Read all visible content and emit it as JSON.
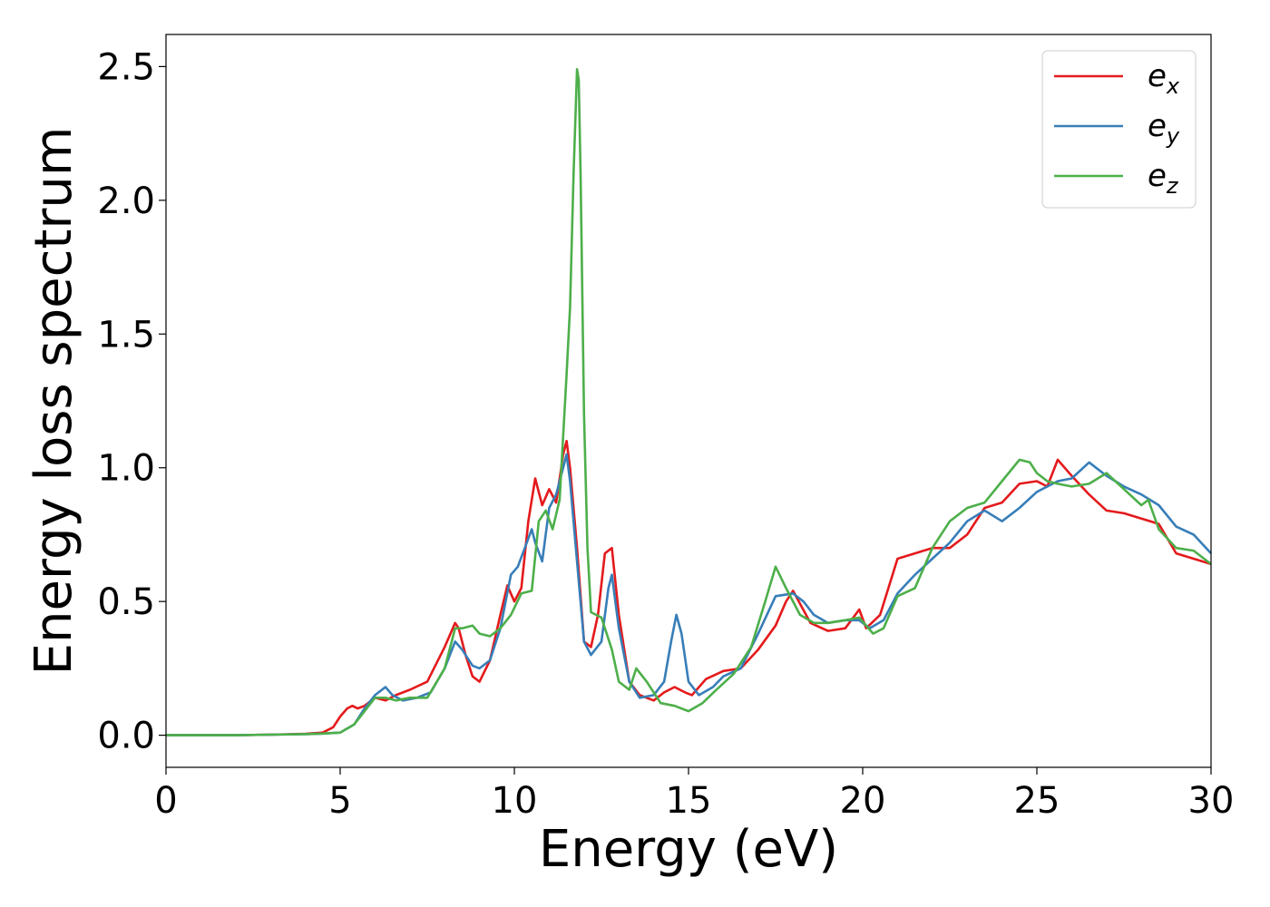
{
  "chart_data": {
    "type": "line",
    "title": "",
    "xlabel": "Energy (eV)",
    "ylabel": "Energy loss spectrum",
    "xlim": [
      0,
      30
    ],
    "ylim": [
      -0.12,
      2.62
    ],
    "xticks": [
      "0",
      "5",
      "10",
      "15",
      "20",
      "25",
      "30"
    ],
    "yticks": [
      "0.0",
      "0.5",
      "1.0",
      "1.5",
      "2.0",
      "2.5"
    ],
    "grid": false,
    "legend_position": "top-right",
    "series": [
      {
        "name": "e_x",
        "label_base": "e",
        "label_sub": "x",
        "color": "#e41a1c",
        "x": [
          0,
          1,
          2,
          3,
          4,
          4.5,
          4.8,
          5.0,
          5.2,
          5.35,
          5.5,
          5.7,
          6.0,
          6.3,
          6.6,
          7.0,
          7.5,
          8.0,
          8.3,
          8.4,
          8.6,
          8.8,
          9.0,
          9.3,
          9.6,
          9.8,
          10.0,
          10.2,
          10.4,
          10.6,
          10.8,
          11.0,
          11.2,
          11.4,
          11.5,
          11.6,
          11.8,
          12.0,
          12.2,
          12.4,
          12.6,
          12.8,
          13.0,
          13.3,
          13.6,
          14.0,
          14.3,
          14.6,
          14.9,
          15.1,
          15.5,
          16.0,
          16.5,
          17.0,
          17.5,
          17.8,
          18.0,
          18.5,
          19.0,
          19.5,
          19.9,
          20.1,
          20.5,
          21.0,
          21.5,
          22.0,
          22.5,
          23.0,
          23.5,
          24.0,
          24.5,
          25.0,
          25.3,
          25.6,
          26.0,
          26.5,
          27.0,
          27.5,
          28.0,
          28.5,
          29.0,
          29.5,
          30.0
        ],
        "y": [
          0,
          0,
          0,
          0.002,
          0.005,
          0.01,
          0.03,
          0.07,
          0.1,
          0.11,
          0.1,
          0.11,
          0.14,
          0.13,
          0.15,
          0.17,
          0.2,
          0.33,
          0.42,
          0.4,
          0.3,
          0.22,
          0.2,
          0.28,
          0.45,
          0.56,
          0.5,
          0.55,
          0.8,
          0.96,
          0.86,
          0.92,
          0.87,
          1.05,
          1.1,
          1.0,
          0.7,
          0.35,
          0.33,
          0.45,
          0.68,
          0.7,
          0.45,
          0.2,
          0.15,
          0.13,
          0.16,
          0.18,
          0.16,
          0.15,
          0.21,
          0.24,
          0.25,
          0.32,
          0.41,
          0.5,
          0.54,
          0.42,
          0.39,
          0.4,
          0.47,
          0.4,
          0.45,
          0.66,
          0.68,
          0.7,
          0.7,
          0.75,
          0.85,
          0.87,
          0.94,
          0.95,
          0.93,
          1.03,
          0.97,
          0.9,
          0.84,
          0.83,
          0.81,
          0.79,
          0.68,
          0.66,
          0.64
        ]
      },
      {
        "name": "e_y",
        "label_base": "e",
        "label_sub": "y",
        "color": "#377eb8",
        "x": [
          0,
          1,
          2,
          3,
          4,
          4.5,
          5.0,
          5.4,
          5.7,
          6.0,
          6.3,
          6.5,
          6.8,
          7.2,
          7.6,
          8.0,
          8.3,
          8.5,
          8.8,
          9.0,
          9.3,
          9.6,
          9.9,
          10.1,
          10.3,
          10.5,
          10.6,
          10.8,
          11.0,
          11.2,
          11.4,
          11.5,
          11.6,
          11.8,
          12.0,
          12.2,
          12.5,
          12.7,
          12.8,
          13.0,
          13.3,
          13.6,
          14.0,
          14.3,
          14.5,
          14.65,
          14.8,
          15.0,
          15.3,
          15.7,
          16.0,
          16.5,
          17.0,
          17.5,
          18.0,
          18.3,
          18.6,
          19.0,
          19.5,
          19.9,
          20.2,
          20.6,
          21.0,
          21.5,
          22.0,
          22.5,
          23.0,
          23.5,
          24.0,
          24.5,
          25.0,
          25.3,
          25.6,
          26.0,
          26.5,
          27.0,
          27.5,
          28.0,
          28.5,
          29.0,
          29.5,
          30.0
        ],
        "y": [
          0,
          0,
          0,
          0.002,
          0.004,
          0.006,
          0.01,
          0.04,
          0.1,
          0.15,
          0.18,
          0.15,
          0.13,
          0.14,
          0.16,
          0.25,
          0.35,
          0.32,
          0.26,
          0.25,
          0.28,
          0.4,
          0.6,
          0.63,
          0.7,
          0.77,
          0.72,
          0.65,
          0.85,
          0.9,
          1.0,
          1.05,
          0.95,
          0.65,
          0.35,
          0.3,
          0.35,
          0.55,
          0.6,
          0.4,
          0.2,
          0.14,
          0.15,
          0.2,
          0.35,
          0.45,
          0.38,
          0.2,
          0.15,
          0.18,
          0.22,
          0.25,
          0.38,
          0.52,
          0.53,
          0.5,
          0.45,
          0.42,
          0.43,
          0.43,
          0.4,
          0.43,
          0.53,
          0.6,
          0.66,
          0.72,
          0.8,
          0.84,
          0.8,
          0.85,
          0.91,
          0.93,
          0.95,
          0.96,
          1.02,
          0.97,
          0.93,
          0.9,
          0.86,
          0.78,
          0.75,
          0.68
        ]
      },
      {
        "name": "e_z",
        "label_base": "e",
        "label_sub": "z",
        "color": "#4daf4a",
        "x": [
          0,
          1,
          2,
          3,
          4,
          4.5,
          5.0,
          5.4,
          5.7,
          6.0,
          6.3,
          6.6,
          7.0,
          7.5,
          8.0,
          8.3,
          8.5,
          8.8,
          9.0,
          9.3,
          9.6,
          9.9,
          10.2,
          10.5,
          10.7,
          10.9,
          11.1,
          11.3,
          11.5,
          11.6,
          11.7,
          11.8,
          11.85,
          11.9,
          12.0,
          12.1,
          12.2,
          12.5,
          12.8,
          13.0,
          13.3,
          13.5,
          13.8,
          14.2,
          14.6,
          15.0,
          15.4,
          15.8,
          16.3,
          16.8,
          17.2,
          17.5,
          17.8,
          18.2,
          18.6,
          19.0,
          19.5,
          19.9,
          20.3,
          20.6,
          21.0,
          21.5,
          22.0,
          22.5,
          23.0,
          23.5,
          24.0,
          24.5,
          24.8,
          25.0,
          25.3,
          25.6,
          26.0,
          26.5,
          27.0,
          27.5,
          28.0,
          28.2,
          28.5,
          29.0,
          29.5,
          30.0
        ],
        "y": [
          0,
          0,
          0,
          0.002,
          0.004,
          0.006,
          0.01,
          0.04,
          0.09,
          0.14,
          0.14,
          0.13,
          0.14,
          0.14,
          0.25,
          0.4,
          0.4,
          0.41,
          0.38,
          0.37,
          0.4,
          0.45,
          0.53,
          0.54,
          0.8,
          0.84,
          0.77,
          0.88,
          1.35,
          1.6,
          2.1,
          2.49,
          2.45,
          2.1,
          1.2,
          0.7,
          0.46,
          0.44,
          0.32,
          0.2,
          0.17,
          0.25,
          0.2,
          0.12,
          0.11,
          0.09,
          0.12,
          0.17,
          0.23,
          0.33,
          0.5,
          0.63,
          0.55,
          0.45,
          0.42,
          0.42,
          0.43,
          0.44,
          0.38,
          0.4,
          0.52,
          0.55,
          0.7,
          0.8,
          0.85,
          0.87,
          0.95,
          1.03,
          1.02,
          0.98,
          0.95,
          0.94,
          0.93,
          0.94,
          0.98,
          0.92,
          0.86,
          0.88,
          0.77,
          0.7,
          0.69,
          0.64
        ]
      }
    ]
  }
}
